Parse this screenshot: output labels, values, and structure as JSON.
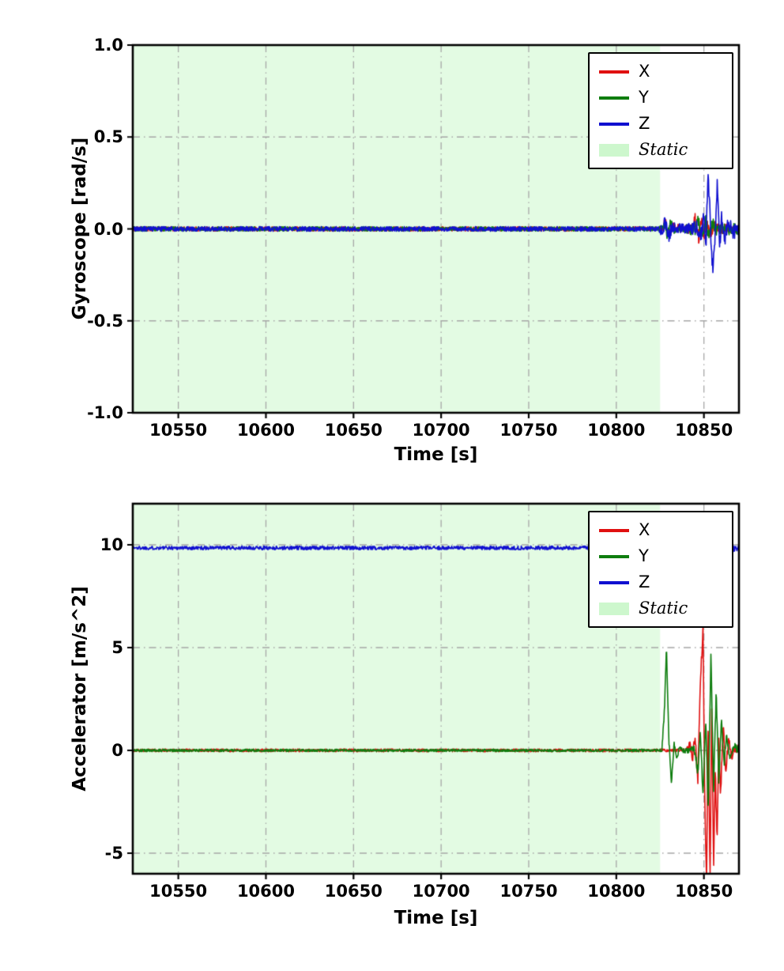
{
  "figure": {
    "background": "#ffffff"
  },
  "chart_data": [
    {
      "type": "line",
      "xlabel": "Time [s]",
      "ylabel": "Gyroscope [rad/s]",
      "xlim": [
        10524,
        10870
      ],
      "ylim": [
        -1.0,
        1.0
      ],
      "xticks": {
        "values": [
          10550,
          10600,
          10650,
          10700,
          10750,
          10800,
          10850
        ],
        "labels": [
          "10550",
          "10600",
          "10650",
          "10700",
          "10750",
          "10800",
          "10850"
        ]
      },
      "yticks": {
        "values": [
          -1.0,
          -0.5,
          0.0,
          0.5,
          1.0
        ],
        "labels": [
          "-1.0",
          "-0.5",
          "0.0",
          "0.5",
          "1.0"
        ]
      },
      "grid": {
        "visible": true,
        "style": "dash-dot",
        "color": "#a6a6a6"
      },
      "static_region": {
        "label": "Static",
        "from": 10524,
        "to": 10825,
        "color": "rgba(144,238,144,0.25)"
      },
      "legend": {
        "position": "upper-right",
        "entries": [
          {
            "label": "X",
            "type": "line",
            "color": "#e01010"
          },
          {
            "label": "Y",
            "type": "line",
            "color": "#0e7d0e"
          },
          {
            "label": "Z",
            "type": "line",
            "color": "#1010d0"
          },
          {
            "label": "Static",
            "type": "patch",
            "color": "rgba(144,238,144,0.45)",
            "italic": true
          }
        ]
      },
      "series": [
        {
          "name": "X",
          "color": "#e01010",
          "path": [
            [
              10524,
              0
            ],
            [
              10826,
              0
            ],
            [
              10828,
              0.03
            ],
            [
              10830,
              -0.03
            ],
            [
              10833,
              0.02
            ],
            [
              10836,
              0
            ],
            [
              10843,
              0
            ],
            [
              10845,
              0.05
            ],
            [
              10847,
              -0.05
            ],
            [
              10848.5,
              0.04
            ],
            [
              10850,
              -0.03
            ],
            [
              10852,
              0.03
            ],
            [
              10854,
              -0.02
            ],
            [
              10856,
              0.02
            ],
            [
              10858,
              0
            ],
            [
              10870,
              0
            ]
          ],
          "noise": [
            [
              10524,
              0.012
            ],
            [
              10824,
              0.012
            ],
            [
              10826,
              0.03
            ],
            [
              10838,
              0.018
            ],
            [
              10845,
              0.035
            ],
            [
              10858,
              0.03
            ],
            [
              10870,
              0.025
            ]
          ]
        },
        {
          "name": "Y",
          "color": "#0e7d0e",
          "path": [
            [
              10524,
              0
            ],
            [
              10826,
              0
            ],
            [
              10827.5,
              0.04
            ],
            [
              10829,
              -0.04
            ],
            [
              10831,
              0.03
            ],
            [
              10834,
              -0.02
            ],
            [
              10837,
              0
            ],
            [
              10845,
              0
            ],
            [
              10847,
              0.05
            ],
            [
              10849,
              -0.05
            ],
            [
              10851,
              0.04
            ],
            [
              10853,
              -0.04
            ],
            [
              10855,
              0.03
            ],
            [
              10857,
              0
            ],
            [
              10870,
              0
            ]
          ],
          "noise": [
            [
              10524,
              0.012
            ],
            [
              10824,
              0.012
            ],
            [
              10826,
              0.035
            ],
            [
              10838,
              0.018
            ],
            [
              10845,
              0.04
            ],
            [
              10870,
              0.03
            ]
          ]
        },
        {
          "name": "Z",
          "color": "#1010d0",
          "path": [
            [
              10524,
              0
            ],
            [
              10826,
              0
            ],
            [
              10828,
              0.04
            ],
            [
              10830,
              -0.04
            ],
            [
              10832,
              0.02
            ],
            [
              10835,
              0
            ],
            [
              10846,
              0
            ],
            [
              10848,
              -0.06
            ],
            [
              10850,
              0.08
            ],
            [
              10851.3,
              -0.07
            ],
            [
              10852.4,
              0.33
            ],
            [
              10853.6,
              0.04
            ],
            [
              10855,
              -0.22
            ],
            [
              10856.3,
              -0.04
            ],
            [
              10857.7,
              0.28
            ],
            [
              10858.9,
              -0.12
            ],
            [
              10860,
              0.06
            ],
            [
              10862,
              -0.05
            ],
            [
              10864,
              0.03
            ],
            [
              10867,
              -0.02
            ],
            [
              10870,
              0
            ]
          ],
          "noise": [
            [
              10524,
              0.013
            ],
            [
              10824,
              0.013
            ],
            [
              10826,
              0.04
            ],
            [
              10840,
              0.025
            ],
            [
              10846,
              0.05
            ],
            [
              10870,
              0.04
            ]
          ]
        }
      ]
    },
    {
      "type": "line",
      "xlabel": "Time [s]",
      "ylabel": "Accelerator [m/s^2]",
      "xlim": [
        10524,
        10870
      ],
      "ylim": [
        -6,
        12
      ],
      "xticks": {
        "values": [
          10550,
          10600,
          10650,
          10700,
          10750,
          10800,
          10850
        ],
        "labels": [
          "10550",
          "10600",
          "10650",
          "10700",
          "10750",
          "10800",
          "10850"
        ]
      },
      "yticks": {
        "values": [
          -5,
          0,
          5,
          10
        ],
        "labels": [
          "-5",
          "0",
          "5",
          "10"
        ]
      },
      "grid": {
        "visible": true,
        "style": "dash-dot",
        "color": "#a6a6a6"
      },
      "static_region": {
        "label": "Static",
        "from": 10524,
        "to": 10825,
        "color": "rgba(144,238,144,0.25)"
      },
      "legend": {
        "position": "upper-right",
        "entries": [
          {
            "label": "X",
            "type": "line",
            "color": "#e01010"
          },
          {
            "label": "Y",
            "type": "line",
            "color": "#0e7d0e"
          },
          {
            "label": "Z",
            "type": "line",
            "color": "#1010d0"
          },
          {
            "label": "Static",
            "type": "patch",
            "color": "rgba(144,238,144,0.45)",
            "italic": true
          }
        ]
      },
      "series": [
        {
          "name": "X",
          "color": "#e01010",
          "path": [
            [
              10524,
              0
            ],
            [
              10840,
              0
            ],
            [
              10842,
              0.3
            ],
            [
              10843.5,
              -0.4
            ],
            [
              10845,
              0.8
            ],
            [
              10846.5,
              -1.5
            ],
            [
              10848,
              3.5
            ],
            [
              10849.5,
              5.9
            ],
            [
              10850.5,
              -2.5
            ],
            [
              10851.5,
              -6.3
            ],
            [
              10852.5,
              1.5
            ],
            [
              10853.5,
              -6.2
            ],
            [
              10854.5,
              2.5
            ],
            [
              10855.5,
              -5.8
            ],
            [
              10856.5,
              -1
            ],
            [
              10857.5,
              -4.5
            ],
            [
              10858.5,
              0.8
            ],
            [
              10859.5,
              -2.2
            ],
            [
              10861,
              1.2
            ],
            [
              10862.5,
              -1
            ],
            [
              10864,
              0.6
            ],
            [
              10866,
              -0.4
            ],
            [
              10868,
              0.2
            ],
            [
              10870,
              0
            ]
          ],
          "noise": [
            [
              10524,
              0.07
            ],
            [
              10838,
              0.07
            ],
            [
              10842,
              0.15
            ],
            [
              10848,
              0.3
            ],
            [
              10862,
              0.3
            ],
            [
              10870,
              0.25
            ]
          ]
        },
        {
          "name": "Y",
          "color": "#0e7d0e",
          "path": [
            [
              10524,
              0
            ],
            [
              10826,
              0
            ],
            [
              10827.5,
              2
            ],
            [
              10828.6,
              5.05
            ],
            [
              10830,
              0.5
            ],
            [
              10831.5,
              -1.6
            ],
            [
              10833,
              0.4
            ],
            [
              10834.5,
              -0.5
            ],
            [
              10836,
              0.2
            ],
            [
              10838,
              0
            ],
            [
              10845,
              0
            ],
            [
              10846.5,
              -1.2
            ],
            [
              10848,
              1
            ],
            [
              10849.5,
              -2.3
            ],
            [
              10851,
              1.5
            ],
            [
              10852.5,
              -2.8
            ],
            [
              10854,
              4.7
            ],
            [
              10855.5,
              -2
            ],
            [
              10857,
              2.8
            ],
            [
              10858.5,
              -1.5
            ],
            [
              10860,
              1.8
            ],
            [
              10861.5,
              -0.8
            ],
            [
              10863,
              0.8
            ],
            [
              10865,
              -0.4
            ],
            [
              10867,
              0.2
            ],
            [
              10870,
              0
            ]
          ],
          "noise": [
            [
              10524,
              0.06
            ],
            [
              10824,
              0.06
            ],
            [
              10828,
              0.15
            ],
            [
              10838,
              0.1
            ],
            [
              10845,
              0.25
            ],
            [
              10870,
              0.2
            ]
          ]
        },
        {
          "name": "Z",
          "color": "#1010d0",
          "path": [
            [
              10524,
              9.85
            ],
            [
              10870,
              9.85
            ]
          ],
          "noise": [
            [
              10524,
              0.09
            ],
            [
              10840,
              0.09
            ],
            [
              10848,
              0.16
            ],
            [
              10870,
              0.18
            ]
          ]
        }
      ]
    }
  ]
}
